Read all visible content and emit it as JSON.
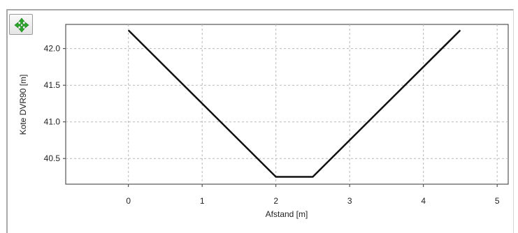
{
  "toolbar": {
    "pan_icon": "move-arrows-icon",
    "pan_color": "#2aa82a"
  },
  "chart_data": {
    "type": "line",
    "xlabel": "Afstand [m]",
    "ylabel": "Kote DVR90 [m]",
    "xlim": [
      -0.85,
      5.15
    ],
    "ylim": [
      40.15,
      42.33
    ],
    "xticks": [
      0,
      1,
      2,
      3,
      4,
      5
    ],
    "xtick_labels": [
      "0",
      "1",
      "2",
      "3",
      "4",
      "5"
    ],
    "yticks": [
      40.5,
      41.0,
      41.5,
      42.0
    ],
    "ytick_labels": [
      "40.5",
      "41.0",
      "41.5",
      "42.0"
    ],
    "grid": true,
    "line_color": "#111111",
    "series": [
      {
        "x": [
          0,
          1,
          2,
          2.5,
          3.5,
          4.5
        ],
        "y": [
          42.25,
          41.25,
          40.25,
          40.25,
          41.25,
          42.25
        ]
      }
    ]
  }
}
